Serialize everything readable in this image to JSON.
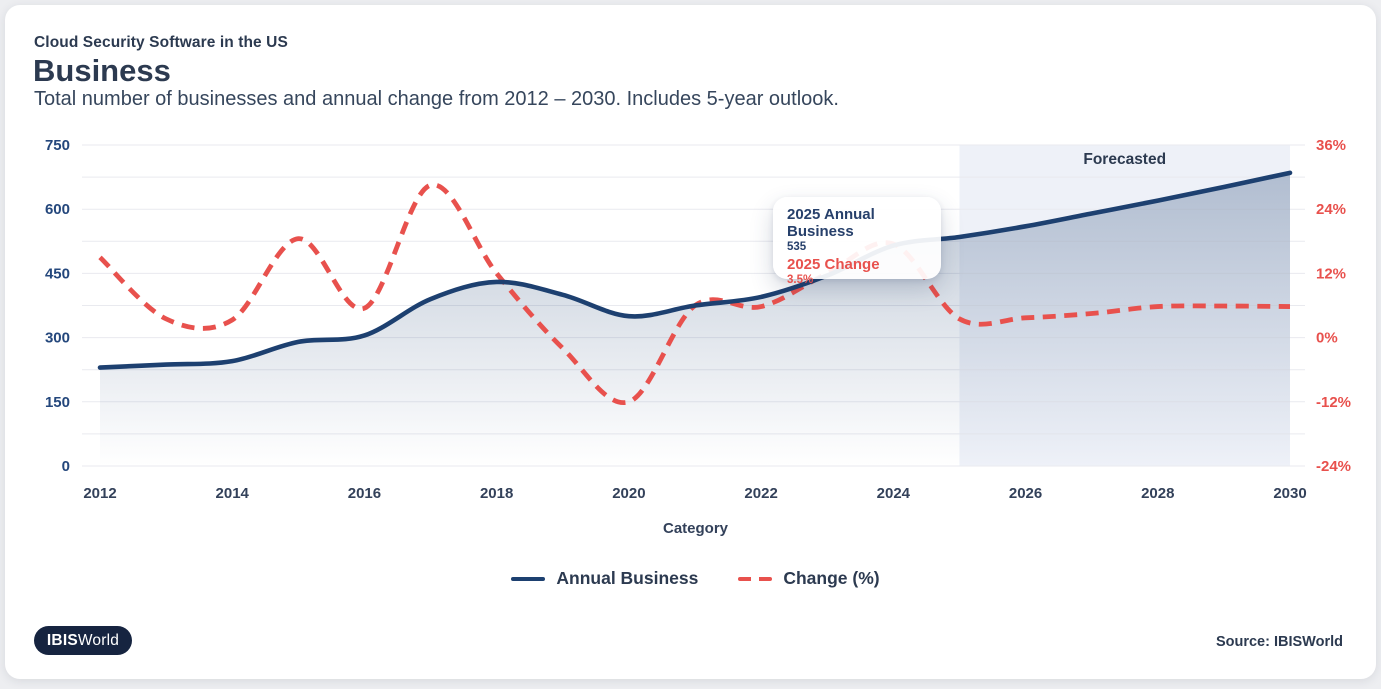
{
  "header": {
    "report_title": "Cloud Security Software in the US",
    "title": "Business",
    "subtitle": "Total number of businesses and annual change from 2012 – 2030. Includes 5-year outlook."
  },
  "chart_data": {
    "type": "line",
    "title": "Business — total number of businesses and annual change",
    "x": [
      2012,
      2013,
      2014,
      2015,
      2016,
      2017,
      2018,
      2019,
      2020,
      2021,
      2022,
      2023,
      2024,
      2025,
      2026,
      2027,
      2028,
      2029,
      2030
    ],
    "series": [
      {
        "name": "Annual Business",
        "axis": "left",
        "style": "solid",
        "color": "#1d4070",
        "values": [
          230,
          237,
          245,
          290,
          305,
          390,
          430,
          400,
          350,
          375,
          395,
          445,
          515,
          535,
          560,
          590,
          620,
          652,
          685
        ]
      },
      {
        "name": "Change (%)",
        "axis": "right",
        "style": "dashed",
        "color": "#e8514d",
        "values": [
          15,
          3.5,
          3.3,
          18.5,
          5.5,
          28.5,
          12,
          -2,
          -12,
          6,
          5.8,
          12,
          17.5,
          3.5,
          3.7,
          4.5,
          5.8,
          5.9,
          5.8
        ]
      }
    ],
    "xlabel": "Category",
    "x_ticks": [
      "2012",
      "2014",
      "2016",
      "2018",
      "2020",
      "2022",
      "2024",
      "2026",
      "2028",
      "2030"
    ],
    "left_axis": {
      "ticks": [
        "0",
        "150",
        "300",
        "450",
        "600",
        "750"
      ],
      "range": [
        0,
        750
      ],
      "minor_step": 75
    },
    "right_axis": {
      "ticks": [
        "-24%",
        "-12%",
        "0%",
        "12%",
        "24%",
        "36%"
      ],
      "range": [
        -24,
        36
      ]
    },
    "grid": true,
    "legend_position": "bottom-center",
    "forecast": {
      "start_year": 2025,
      "end_year": 2030,
      "label": "Forecasted"
    }
  },
  "tooltip": {
    "series1_label": "2025 Annual Business",
    "series1_value": "535",
    "series2_label": "2025 Change",
    "series2_value": "3.5%"
  },
  "footer": {
    "logo_bold": "IBIS",
    "logo_rest": "World",
    "source": "Source: IBISWorld"
  },
  "colors": {
    "navy_line": "#1d4070",
    "red_line": "#e8514d",
    "forecast_band": "#eef1f8",
    "gridline": "#e9eaef",
    "left_tick": "#24477c",
    "right_tick": "#e8514d",
    "x_tick": "#33415a",
    "title_text": "#2c3a50",
    "logo_bg": "#162440"
  }
}
